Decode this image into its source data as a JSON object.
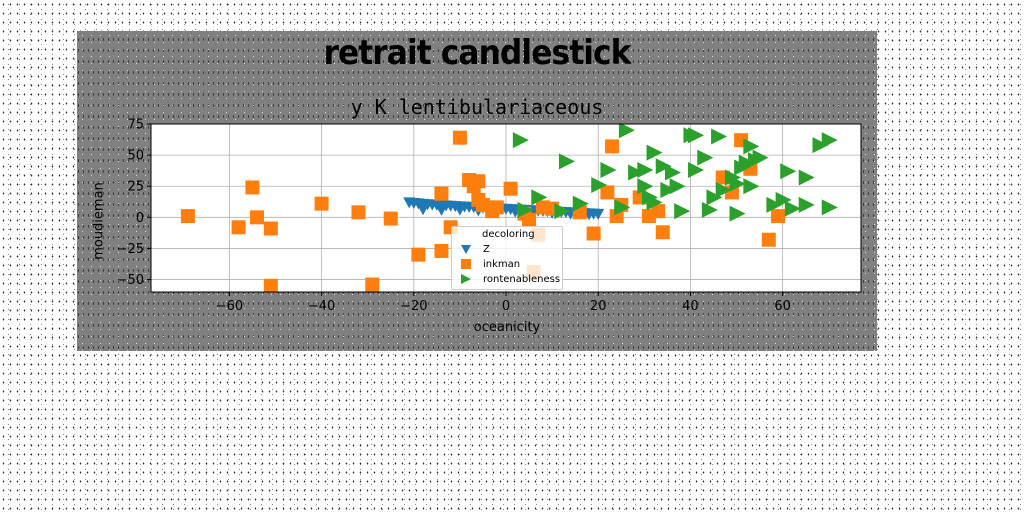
{
  "chart_data": {
    "type": "scatter",
    "suptitle": "retrait candlestick",
    "title": "y K lentibulariaceous",
    "xlabel": "oceanicity",
    "ylabel": "moudieman",
    "xlim": [
      -77,
      77
    ],
    "ylim": [
      -60,
      75
    ],
    "xticks": [
      -60,
      -40,
      -20,
      0,
      20,
      40,
      60
    ],
    "yticks": [
      -50,
      -25,
      0,
      25,
      50,
      75
    ],
    "grid": true,
    "legend": {
      "title": "decoloring",
      "placement": "lower-center"
    },
    "colors": {
      "figure_bg": "#808080",
      "z": "#1f77b4",
      "inkman": "#ff7f0e",
      "rontenableness": "#2ca02c"
    },
    "series": [
      {
        "name": "Z",
        "marker": "triangle-down",
        "points": [
          [
            -21,
            12
          ],
          [
            -20,
            11.5
          ],
          [
            -19,
            11.2
          ],
          [
            -18,
            10.8
          ],
          [
            -17,
            10.5
          ],
          [
            -16,
            10.2
          ],
          [
            -15,
            10
          ],
          [
            -14,
            9.7
          ],
          [
            -13,
            9.5
          ],
          [
            -12,
            9.3
          ],
          [
            -11,
            9
          ],
          [
            -10,
            8.8
          ],
          [
            -9,
            8.6
          ],
          [
            -8,
            8.4
          ],
          [
            -7,
            8.2
          ],
          [
            -6,
            8
          ],
          [
            -5,
            7.8
          ],
          [
            -4,
            7.6
          ],
          [
            -3,
            7.4
          ],
          [
            -2,
            7.2
          ],
          [
            -1,
            7
          ],
          [
            0,
            6.8
          ],
          [
            1,
            6.6
          ],
          [
            2,
            6.4
          ],
          [
            3,
            6.2
          ],
          [
            4,
            6
          ],
          [
            5,
            5.8
          ],
          [
            6,
            5.6
          ],
          [
            7,
            5.4
          ],
          [
            8,
            5.2
          ],
          [
            9,
            5
          ],
          [
            10,
            4.8
          ],
          [
            11,
            4.6
          ],
          [
            12,
            4.4
          ],
          [
            13,
            4.2
          ],
          [
            14,
            4
          ],
          [
            15,
            3.8
          ],
          [
            16,
            3.6
          ],
          [
            17,
            3.4
          ],
          [
            18,
            3.2
          ],
          [
            19,
            3
          ],
          [
            20,
            2.8
          ],
          [
            -18,
            6.5
          ],
          [
            -14,
            6
          ],
          [
            -10,
            6.2
          ],
          [
            -6,
            5.5
          ],
          [
            -2,
            5
          ],
          [
            2,
            4.6
          ],
          [
            6,
            4.2
          ],
          [
            10,
            3.6
          ],
          [
            14,
            3
          ],
          [
            18,
            2.4
          ]
        ]
      },
      {
        "name": "inkman",
        "marker": "square",
        "points": [
          [
            -69,
            1
          ],
          [
            -58,
            -8
          ],
          [
            -55,
            24
          ],
          [
            -54,
            0
          ],
          [
            -51,
            -9
          ],
          [
            -51,
            -55
          ],
          [
            -40,
            11
          ],
          [
            -32,
            4
          ],
          [
            -29,
            -54
          ],
          [
            -25,
            -1
          ],
          [
            -19,
            -30
          ],
          [
            -14,
            19
          ],
          [
            -14,
            -27
          ],
          [
            -12,
            -8
          ],
          [
            -10,
            64
          ],
          [
            -8,
            30
          ],
          [
            -7,
            25
          ],
          [
            -6,
            29
          ],
          [
            -6,
            14
          ],
          [
            -5,
            10
          ],
          [
            -3,
            5
          ],
          [
            -2,
            8
          ],
          [
            1,
            23
          ],
          [
            4,
            3
          ],
          [
            5,
            -2
          ],
          [
            6,
            -44
          ],
          [
            7,
            -14
          ],
          [
            8,
            8
          ],
          [
            10,
            7
          ],
          [
            16,
            4
          ],
          [
            19,
            -13
          ],
          [
            22,
            20
          ],
          [
            23,
            57
          ],
          [
            24,
            1
          ],
          [
            25,
            10
          ],
          [
            29,
            16
          ],
          [
            31,
            1
          ],
          [
            33,
            5
          ],
          [
            34,
            -12
          ],
          [
            47,
            32
          ],
          [
            49,
            20
          ],
          [
            51,
            62
          ],
          [
            53,
            39
          ],
          [
            57,
            -18
          ],
          [
            59,
            1
          ]
        ]
      },
      {
        "name": "rontenableness",
        "marker": "triangle-right",
        "points": [
          [
            3,
            62
          ],
          [
            4,
            6
          ],
          [
            7,
            16
          ],
          [
            12,
            5
          ],
          [
            13,
            45
          ],
          [
            16,
            11
          ],
          [
            20,
            26
          ],
          [
            22,
            38
          ],
          [
            25,
            8
          ],
          [
            26,
            70
          ],
          [
            28,
            36
          ],
          [
            30,
            38
          ],
          [
            30,
            25
          ],
          [
            31,
            16
          ],
          [
            32,
            12
          ],
          [
            32,
            52
          ],
          [
            34,
            41
          ],
          [
            35,
            22
          ],
          [
            36,
            36
          ],
          [
            37,
            25
          ],
          [
            38,
            5
          ],
          [
            40,
            66
          ],
          [
            41,
            38
          ],
          [
            41,
            66
          ],
          [
            43,
            48
          ],
          [
            44,
            6
          ],
          [
            45,
            16
          ],
          [
            46,
            65
          ],
          [
            47,
            22
          ],
          [
            49,
            32
          ],
          [
            50,
            3
          ],
          [
            50,
            27
          ],
          [
            51,
            40
          ],
          [
            52,
            44
          ],
          [
            53,
            25
          ],
          [
            53,
            57
          ],
          [
            54,
            46
          ],
          [
            55,
            48
          ],
          [
            58,
            10
          ],
          [
            60,
            14
          ],
          [
            61,
            37
          ],
          [
            62,
            7
          ],
          [
            65,
            32
          ],
          [
            65,
            10
          ],
          [
            68,
            58
          ],
          [
            70,
            8
          ],
          [
            70,
            62
          ]
        ]
      }
    ]
  }
}
